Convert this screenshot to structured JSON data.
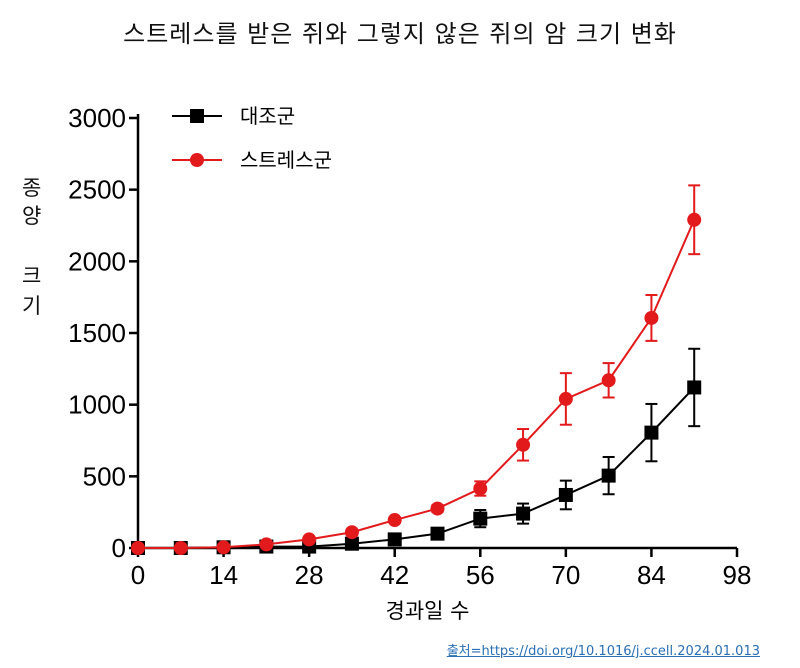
{
  "chart_data": {
    "type": "line",
    "title": "스트레스를 받은 쥐와 그렇지 않은 쥐의 암 크기 변화",
    "xlabel": "경과일 수",
    "ylabel": "종양 크기",
    "xlim": [
      0,
      98
    ],
    "ylim": [
      0,
      3000
    ],
    "xticks": [
      0,
      14,
      28,
      42,
      56,
      70,
      84,
      98
    ],
    "yticks": [
      0,
      500,
      1000,
      1500,
      2000,
      2500,
      3000
    ],
    "legend_position": "top-left",
    "series": [
      {
        "name": "대조군",
        "color": "#000000",
        "marker": "square",
        "x": [
          0,
          7,
          14,
          21,
          28,
          35,
          42,
          49,
          56,
          63,
          70,
          77,
          84,
          91
        ],
        "y": [
          0,
          0,
          5,
          10,
          10,
          30,
          60,
          100,
          205,
          240,
          370,
          505,
          805,
          1120
        ],
        "err": [
          0,
          0,
          0,
          5,
          5,
          10,
          15,
          20,
          60,
          70,
          100,
          130,
          200,
          270
        ]
      },
      {
        "name": "스트레스군",
        "color": "#e31a1c",
        "marker": "circle",
        "x": [
          0,
          7,
          14,
          21,
          28,
          35,
          42,
          49,
          56,
          63,
          70,
          77,
          84,
          91
        ],
        "y": [
          0,
          0,
          5,
          25,
          60,
          110,
          195,
          275,
          415,
          720,
          1040,
          1170,
          1605,
          2290
        ],
        "err": [
          0,
          0,
          0,
          5,
          10,
          15,
          20,
          25,
          50,
          110,
          180,
          120,
          160,
          240
        ]
      }
    ]
  },
  "source": "출처=https://doi.org/10.1016/j.ccell.2024.01.013"
}
